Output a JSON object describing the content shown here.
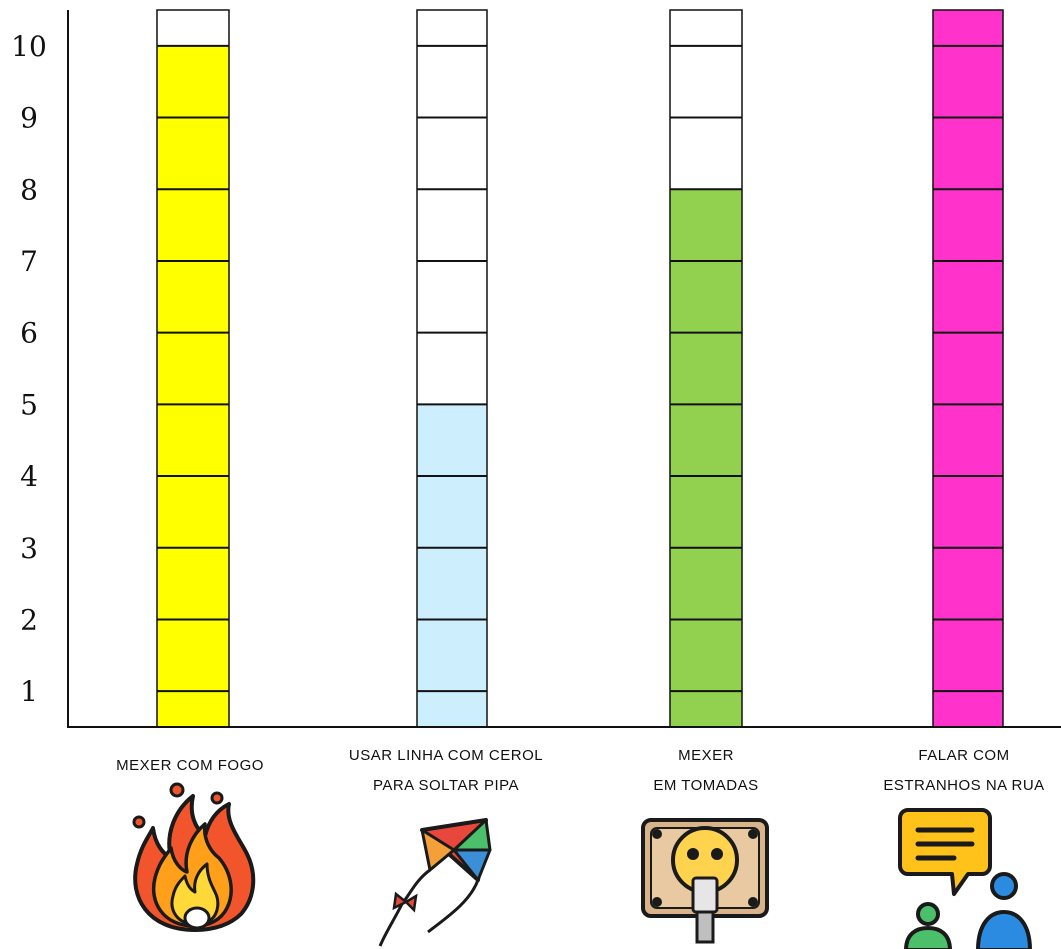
{
  "chart_data": {
    "type": "bar",
    "title": "",
    "xlabel": "",
    "ylabel": "",
    "ylim": [
      0,
      10
    ],
    "yticks": [
      "1",
      "2",
      "3",
      "4",
      "5",
      "6",
      "7",
      "8",
      "9",
      "10"
    ],
    "grid": false,
    "categories": [
      [
        "MEXER   COM   FOGO"
      ],
      [
        "USAR   LINHA   COM   CEROL",
        "PARA SOLTAR  PIPA"
      ],
      [
        "MEXER",
        "EM TOMADAS"
      ],
      [
        "FALAR COM",
        "ESTRANHOS  NA RUA"
      ]
    ],
    "values": [
      9.5,
      4.5,
      7.5,
      10
    ],
    "colors": [
      "#ffff00",
      "#cdeefc",
      "#92d050",
      "#ff33cc"
    ],
    "icons": [
      "fire-icon",
      "kite-icon",
      "electric-outlet-plug-icon",
      "stranger-chat-icon"
    ]
  }
}
